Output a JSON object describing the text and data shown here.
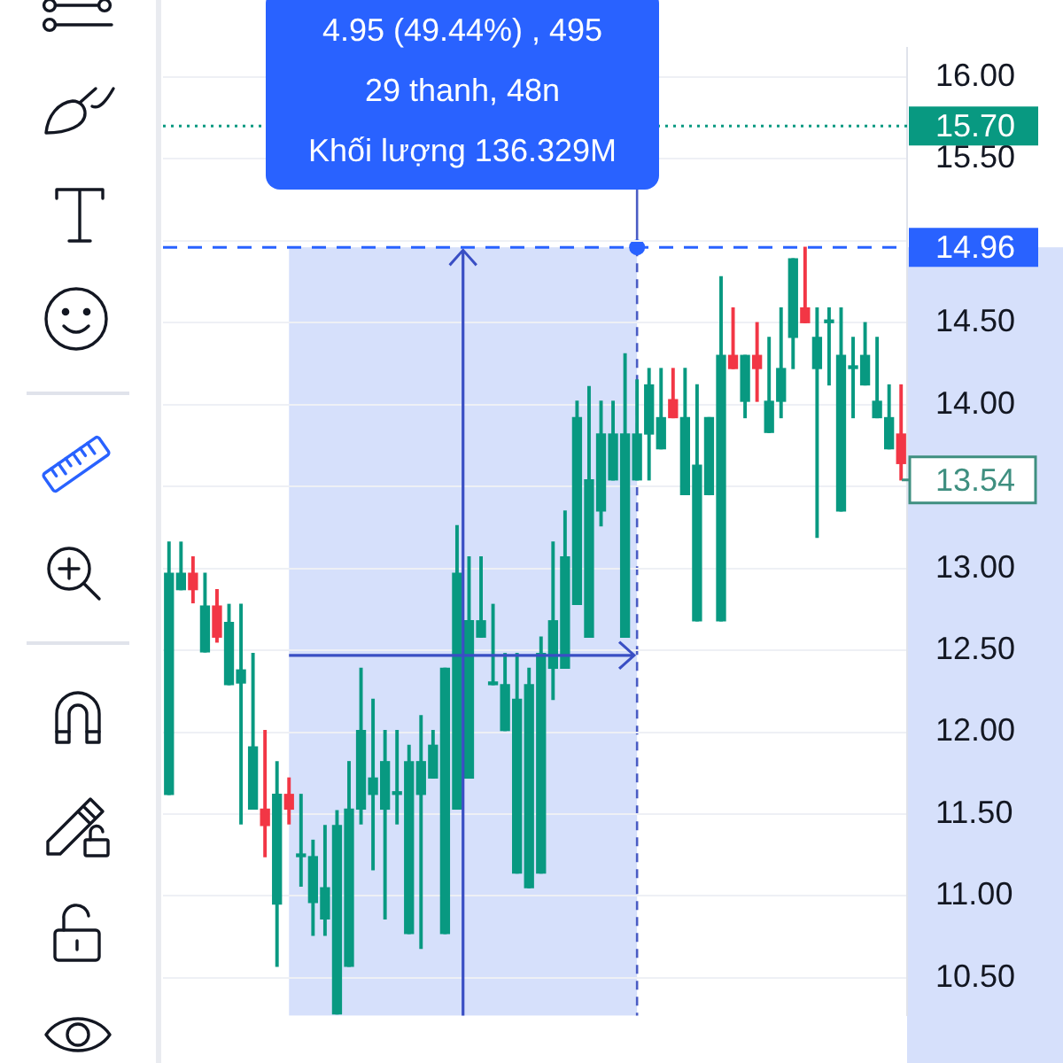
{
  "chart_data": {
    "type": "candlestick",
    "categories": [
      null,
      null,
      null,
      null,
      null,
      null,
      null,
      null,
      null,
      null,
      null,
      null,
      null,
      null,
      null,
      null,
      null,
      null,
      null,
      null,
      null,
      null,
      null,
      null,
      null,
      null,
      null,
      null,
      null,
      null,
      null,
      null,
      null,
      null,
      null,
      null,
      null,
      null,
      null,
      null,
      null,
      null,
      null,
      null,
      null,
      null,
      null,
      null,
      null,
      null,
      null,
      null,
      null,
      null,
      null,
      null,
      null,
      null,
      null,
      null,
      null,
      null
    ],
    "ohlc": [
      [
        11.62,
        13.16,
        11.62,
        12.97
      ],
      [
        12.87,
        13.16,
        12.87,
        12.97
      ],
      [
        12.97,
        13.07,
        12.79,
        12.87
      ],
      [
        12.49,
        12.97,
        12.49,
        12.77
      ],
      [
        12.77,
        12.87,
        12.55,
        12.58
      ],
      [
        12.29,
        12.78,
        12.29,
        12.67
      ],
      [
        12.3,
        12.78,
        11.44,
        12.38
      ],
      [
        11.53,
        12.48,
        11.53,
        11.91
      ],
      [
        11.53,
        12.01,
        11.24,
        11.43
      ],
      [
        10.95,
        11.82,
        10.57,
        11.62
      ],
      [
        11.62,
        11.72,
        11.44,
        11.53
      ],
      [
        11.24,
        11.62,
        11.06,
        11.24
      ],
      [
        10.96,
        11.34,
        10.76,
        11.24
      ],
      [
        10.86,
        11.43,
        10.76,
        11.05
      ],
      [
        10.28,
        11.52,
        10.28,
        11.43
      ],
      [
        10.57,
        11.82,
        10.57,
        11.53
      ],
      [
        11.53,
        12.39,
        11.44,
        12.01
      ],
      [
        11.62,
        12.2,
        11.16,
        11.72
      ],
      [
        11.53,
        12.01,
        10.86,
        11.82
      ],
      [
        11.62,
        12.01,
        11.44,
        11.62
      ],
      [
        10.77,
        11.92,
        10.77,
        11.82
      ],
      [
        11.62,
        12.1,
        10.68,
        11.82
      ],
      [
        11.72,
        12.01,
        11.72,
        11.92
      ],
      [
        10.77,
        12.39,
        10.77,
        12.39
      ],
      [
        11.53,
        13.26,
        11.53,
        12.97
      ],
      [
        11.72,
        13.07,
        11.72,
        12.68
      ],
      [
        12.58,
        13.07,
        12.58,
        12.68
      ],
      [
        12.29,
        12.78,
        12.29,
        12.29
      ],
      [
        12.01,
        12.48,
        12.01,
        12.29
      ],
      [
        11.14,
        12.48,
        11.14,
        12.2
      ],
      [
        11.05,
        12.39,
        11.05,
        12.29
      ],
      [
        11.14,
        12.58,
        11.14,
        12.48
      ],
      [
        12.39,
        13.16,
        12.2,
        12.68
      ],
      [
        12.39,
        13.35,
        12.39,
        13.07
      ],
      [
        12.78,
        14.02,
        12.78,
        13.92
      ],
      [
        12.58,
        14.11,
        12.58,
        13.54
      ],
      [
        13.35,
        14.02,
        13.26,
        13.82
      ],
      [
        13.54,
        14.02,
        13.54,
        13.82
      ],
      [
        12.58,
        14.31,
        12.58,
        13.82
      ],
      [
        13.54,
        14.15,
        13.54,
        13.82
      ],
      [
        13.82,
        14.22,
        13.54,
        14.12
      ],
      [
        13.73,
        14.22,
        13.73,
        13.92
      ],
      [
        14.03,
        14.22,
        13.92,
        13.92
      ],
      [
        13.45,
        14.22,
        13.45,
        13.92
      ],
      [
        12.68,
        14.12,
        12.68,
        13.63
      ],
      [
        13.45,
        13.92,
        13.45,
        13.92
      ],
      [
        12.68,
        14.78,
        12.68,
        14.3
      ],
      [
        14.3,
        14.59,
        14.22,
        14.22
      ],
      [
        14.02,
        14.3,
        13.92,
        14.3
      ],
      [
        14.3,
        14.5,
        14.02,
        14.22
      ],
      [
        13.83,
        14.41,
        13.83,
        14.02
      ],
      [
        14.02,
        14.59,
        13.92,
        14.22
      ],
      [
        14.41,
        14.89,
        14.22,
        14.89
      ],
      [
        14.59,
        14.96,
        14.5,
        14.5
      ],
      [
        14.22,
        14.59,
        13.19,
        14.41
      ],
      [
        14.5,
        14.59,
        14.12,
        14.5
      ],
      [
        13.35,
        14.59,
        13.35,
        14.3
      ],
      [
        14.22,
        14.41,
        13.92,
        14.22
      ],
      [
        14.12,
        14.5,
        14.12,
        14.3
      ],
      [
        13.92,
        14.41,
        13.92,
        14.02
      ],
      [
        13.73,
        14.12,
        13.73,
        13.92
      ],
      [
        13.82,
        14.12,
        13.54,
        13.64
      ]
    ],
    "colors": [
      "#089981",
      "#089981",
      "#f23645",
      "#089981",
      "#f23645",
      "#089981",
      "#089981",
      "#089981",
      "#f23645",
      "#089981",
      "#f23645",
      "#089981",
      "#089981",
      "#089981",
      "#089981",
      "#089981",
      "#089981",
      "#089981",
      "#089981",
      "#089981",
      "#089981",
      "#089981",
      "#089981",
      "#089981",
      "#089981",
      "#089981",
      "#089981",
      "#089981",
      "#089981",
      "#089981",
      "#089981",
      "#089981",
      "#089981",
      "#089981",
      "#089981",
      "#089981",
      "#089981",
      "#089981",
      "#089981",
      "#089981",
      "#089981",
      "#089981",
      "#f23645",
      "#089981",
      "#089981",
      "#089981",
      "#089981",
      "#f23645",
      "#089981",
      "#f23645",
      "#089981",
      "#089981",
      "#089981",
      "#f23645",
      "#089981",
      "#089981",
      "#089981",
      "#089981",
      "#089981",
      "#089981",
      "#089981",
      "#f23645"
    ],
    "ylim": [
      10.27,
      16.18
    ],
    "yticks": [
      {
        "value": 10.5,
        "label": "10.50"
      },
      {
        "value": 11,
        "label": "11.00"
      },
      {
        "value": 11.5,
        "label": "11.50"
      },
      {
        "value": 12,
        "label": "12.00"
      },
      {
        "value": 12.5,
        "label": "12.50"
      },
      {
        "value": 13,
        "label": "13.00"
      },
      {
        "value": 13.5,
        "label": null
      },
      {
        "value": 14,
        "label": "14.00"
      },
      {
        "value": 14.5,
        "label": "14.50"
      },
      {
        "value": 15,
        "label": null
      },
      {
        "value": 15.5,
        "label": "15.50"
      },
      {
        "value": 16,
        "label": "16.00"
      }
    ],
    "grid": "y",
    "tick_labels": "y",
    "ref_lines": [
      {
        "axis": "y",
        "value": 15.7,
        "label": "15.70",
        "color": "#089981",
        "line_style": "dotted"
      },
      {
        "axis": "y",
        "value": 14.96,
        "label": "14.96",
        "color": "#2962ff",
        "line_style": "dashed"
      }
    ],
    "annotations": [
      "4.95 (49.44%) , 495",
      "29 thanh, 48n",
      "Khối lượng 136.329M",
      "13.54"
    ]
  }
}
